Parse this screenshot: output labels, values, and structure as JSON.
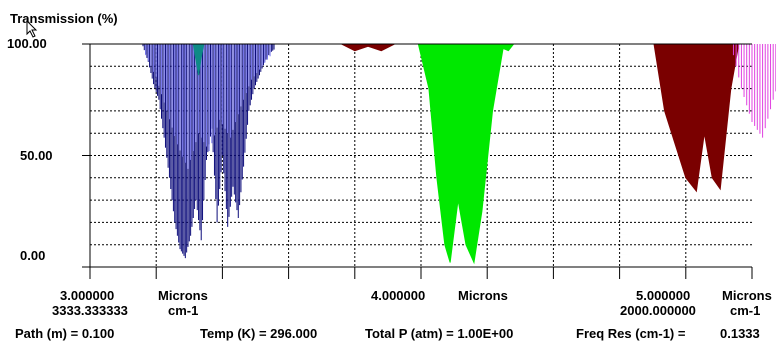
{
  "chart_data": {
    "type": "area",
    "title": "Transmission (%)",
    "ylabel": "Transmission (%)",
    "ylim": [
      0,
      100
    ],
    "yticks": [
      "100.00",
      "50.00",
      "0.00"
    ],
    "x_units_primary": "Microns",
    "x_units_secondary": "cm-1",
    "xlim_microns": [
      3.0,
      5.5
    ],
    "x_tick_labels": [
      {
        "micron": "3.000000",
        "wavenumber": "3333.333333"
      },
      {
        "micron": "4.000000"
      },
      {
        "micron": "5.000000",
        "wavenumber": "2000.000000"
      }
    ],
    "grid": true,
    "series": [
      {
        "color": "#0b0b7a",
        "style": "lines",
        "points": [
          [
            3.2,
            99
          ],
          [
            3.22,
            92
          ],
          [
            3.24,
            82
          ],
          [
            3.26,
            75
          ],
          [
            3.28,
            58
          ],
          [
            3.3,
            40
          ],
          [
            3.32,
            20
          ],
          [
            3.34,
            8
          ],
          [
            3.36,
            4
          ],
          [
            3.38,
            14
          ],
          [
            3.4,
            30
          ],
          [
            3.42,
            12
          ],
          [
            3.44,
            48
          ],
          [
            3.46,
            62
          ],
          [
            3.48,
            20
          ],
          [
            3.5,
            50
          ],
          [
            3.52,
            18
          ],
          [
            3.54,
            36
          ],
          [
            3.56,
            22
          ],
          [
            3.58,
            45
          ],
          [
            3.6,
            70
          ],
          [
            3.62,
            80
          ],
          [
            3.64,
            86
          ],
          [
            3.66,
            92
          ],
          [
            3.68,
            96
          ],
          [
            3.7,
            98
          ]
        ]
      },
      {
        "color": "#7a7af0",
        "style": "lines",
        "points": [
          [
            3.21,
            95
          ],
          [
            3.25,
            85
          ],
          [
            3.29,
            70
          ],
          [
            3.33,
            55
          ],
          [
            3.37,
            44
          ],
          [
            3.41,
            60
          ],
          [
            3.45,
            52
          ],
          [
            3.49,
            66
          ],
          [
            3.53,
            58
          ],
          [
            3.57,
            72
          ],
          [
            3.61,
            84
          ],
          [
            3.65,
            90
          ],
          [
            3.69,
            96
          ]
        ]
      },
      {
        "color": "#0e8a86",
        "style": "fill",
        "points": [
          [
            3.39,
            100
          ],
          [
            3.4,
            93
          ],
          [
            3.41,
            86
          ],
          [
            3.42,
            94
          ],
          [
            3.43,
            100
          ]
        ]
      },
      {
        "color": "#7a0000",
        "style": "fill",
        "points": [
          [
            3.95,
            100
          ],
          [
            4.0,
            97
          ],
          [
            4.05,
            99
          ],
          [
            4.1,
            97
          ],
          [
            4.15,
            100
          ],
          [
            5.13,
            100
          ],
          [
            5.17,
            70
          ],
          [
            5.21,
            55
          ],
          [
            5.25,
            40
          ],
          [
            5.29,
            34
          ],
          [
            5.32,
            60
          ],
          [
            5.35,
            40
          ],
          [
            5.38,
            35
          ],
          [
            5.42,
            80
          ],
          [
            5.45,
            100
          ]
        ]
      },
      {
        "color": "#00e800",
        "style": "fill",
        "points": [
          [
            4.24,
            100
          ],
          [
            4.28,
            80
          ],
          [
            4.31,
            40
          ],
          [
            4.34,
            10
          ],
          [
            4.36,
            2
          ],
          [
            4.39,
            30
          ],
          [
            4.42,
            10
          ],
          [
            4.45,
            2
          ],
          [
            4.48,
            25
          ],
          [
            4.52,
            70
          ],
          [
            4.56,
            98
          ],
          [
            4.58,
            97
          ],
          [
            4.6,
            100
          ],
          [
            4.64,
            100
          ]
        ]
      },
      {
        "color": "#e040e0",
        "style": "lines",
        "points": [
          [
            5.42,
            100
          ],
          [
            5.46,
            80
          ],
          [
            5.5,
            65
          ],
          [
            5.54,
            58
          ],
          [
            5.58,
            75
          ],
          [
            5.62,
            90
          ],
          [
            5.66,
            78
          ],
          [
            5.7,
            62
          ],
          [
            5.74,
            60
          ],
          [
            5.78,
            70
          ],
          [
            5.82,
            82
          ],
          [
            5.86,
            92
          ],
          [
            5.9,
            97
          ],
          [
            5.94,
            99
          ]
        ]
      }
    ]
  },
  "footer": {
    "path": "Path (m) =  0.100",
    "temp": "Temp (K) =  296.000",
    "pressure": "Total P  (atm) = 1.00E+00",
    "freq_res_label": "Freq Res (cm-1) =",
    "freq_res_value": "0.1333"
  }
}
